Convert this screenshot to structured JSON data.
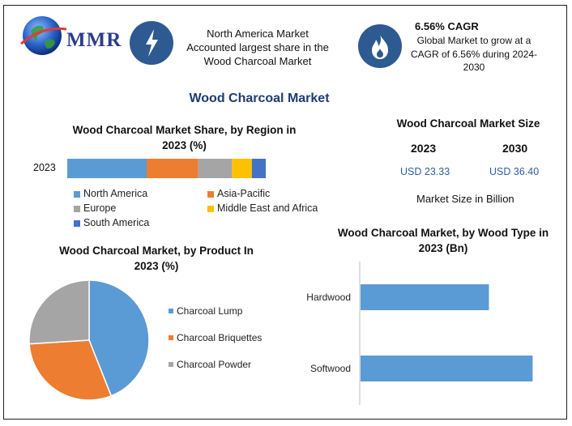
{
  "header": {
    "logo_text": "MMR",
    "info1_text": [
      "North America Market",
      "Accounted largest share in the",
      "Wood Charcoal Market"
    ],
    "info2_title": "6.56% CAGR",
    "info2_text": [
      "Global Market to grow at a",
      "CAGR of 6.56% during 2024-",
      "2030"
    ]
  },
  "main_title": "Wood Charcoal Market",
  "colors": {
    "north_america": "#5b9bd5",
    "asia_pacific": "#ed7d31",
    "europe": "#a5a5a5",
    "middle_east_africa": "#ffc000",
    "south_america": "#4472c4",
    "bar_blue": "#5b9bd5",
    "title_blue": "#1f3b73"
  },
  "market_size": {
    "title": "Wood Charcoal Market Size",
    "year1": "2023",
    "year2": "2030",
    "value1": "USD 23.33",
    "value2": "USD 36.40",
    "note": "Market Size in Billion"
  },
  "chart_data": [
    {
      "type": "bar",
      "orientation": "horizontal-stacked",
      "title": "Wood Charcoal Market Share, by Region in 2023 (%)",
      "categories": [
        "2023"
      ],
      "series": [
        {
          "name": "North America",
          "values": [
            40
          ]
        },
        {
          "name": "Asia-Pacific",
          "values": [
            26
          ]
        },
        {
          "name": "Europe",
          "values": [
            17
          ]
        },
        {
          "name": "Middle East and Africa",
          "values": [
            10
          ]
        },
        {
          "name": "South America",
          "values": [
            7
          ]
        }
      ],
      "legend": "bottom"
    },
    {
      "type": "pie",
      "title": "Wood Charcoal Market, by Product In 2023 (%)",
      "labels": [
        "Charcoal Lump",
        "Charcoal Briquettes",
        "Charcoal Powder"
      ],
      "values": [
        44,
        30,
        26
      ],
      "legend": "right"
    },
    {
      "type": "bar",
      "orientation": "horizontal",
      "title": "Wood Charcoal Market, by Wood Type in 2023 (Bn)",
      "categories": [
        "Hardwood",
        "Softwood"
      ],
      "values": [
        9.4,
        12.6
      ],
      "xlim": [
        0,
        14
      ]
    }
  ]
}
